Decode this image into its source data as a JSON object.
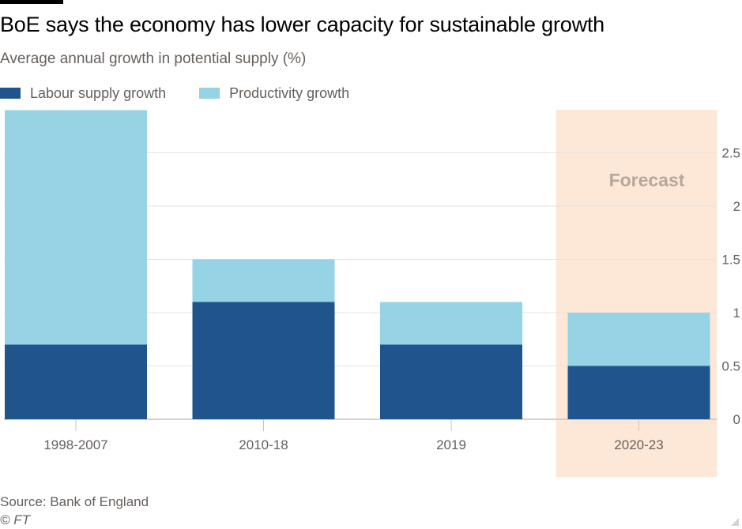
{
  "header": {
    "title": "BoE says the economy has lower capacity for sustainable growth",
    "subtitle": "Average annual growth in potential supply (%)"
  },
  "legend": [
    {
      "label": "Labour supply growth",
      "color": "#1f558c"
    },
    {
      "label": "Productivity growth",
      "color": "#96d3e5"
    }
  ],
  "footer": {
    "source": "Source: Bank of England",
    "copyright": "© FT"
  },
  "chart_data": {
    "type": "bar",
    "stacked": true,
    "title": "BoE says the economy has lower capacity for sustainable growth",
    "subtitle": "Average annual growth in potential supply (%)",
    "xlabel": "",
    "ylabel": "",
    "categories": [
      "1998-2007",
      "2010-18",
      "2019",
      "2020-23"
    ],
    "series": [
      {
        "name": "Labour supply growth",
        "color": "#1f558c",
        "values": [
          0.7,
          1.1,
          0.7,
          0.5
        ]
      },
      {
        "name": "Productivity growth",
        "color": "#96d3e5",
        "values": [
          2.2,
          0.4,
          0.4,
          0.5
        ]
      }
    ],
    "ylim": [
      0,
      2.9
    ],
    "yticks": [
      0,
      0.5,
      1,
      1.5,
      2,
      2.5
    ],
    "ytick_labels": [
      "0",
      "0.5",
      "1",
      "1.5",
      "2",
      "2.5"
    ],
    "y_axis_side": "right",
    "grid": true,
    "legend_position": "top-left",
    "annotations": [
      {
        "text": "Forecast",
        "category": "2020-23",
        "background": "#fde8d8"
      }
    ]
  }
}
